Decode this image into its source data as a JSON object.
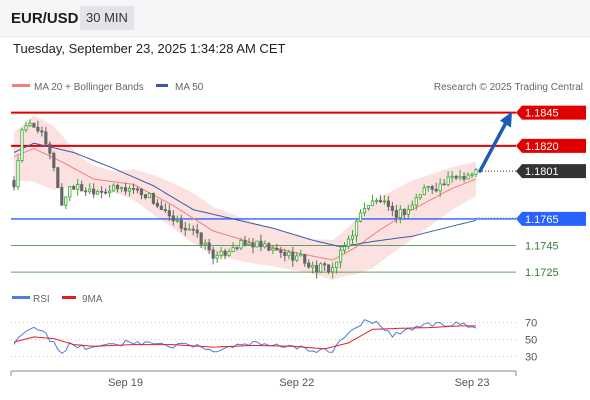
{
  "header": {
    "symbol": "EUR/USD",
    "timeframe": "30 MIN"
  },
  "timestamp": "Tuesday, September 23, 2025 1:34:28 AM CET",
  "legend": {
    "ma20": "MA 20 + Bollinger Bands",
    "ma50": "MA 50",
    "rsi": "RSI",
    "ma9": "9MA"
  },
  "attribution": "Research © 2025 Trading Central",
  "colors": {
    "candle_up": "#33aa33",
    "candle_down": "#666666",
    "ma20": "#f08080",
    "ma50": "#3a5aa8",
    "bollinger_fill": "#fcdcdc",
    "resistance": "#e00000",
    "support": "#2962ff",
    "target": "#60a060",
    "arrow": "#1e5bb8",
    "rsi": "#4a7ee0",
    "rsi_ma": "#e02020"
  },
  "chart_data": [
    {
      "type": "candlestick",
      "title": "EUR/USD 30 MIN",
      "x_ticks": [
        "Sep 19",
        "Sep 22",
        "Sep 23"
      ],
      "ylim": [
        1.1707,
        1.1853
      ],
      "levels": [
        {
          "value": 1.1845,
          "label": "1.1845",
          "kind": "resistance"
        },
        {
          "value": 1.182,
          "label": "1.1820",
          "kind": "resistance"
        },
        {
          "value": 1.1801,
          "label": "1.1801",
          "kind": "current"
        },
        {
          "value": 1.1765,
          "label": "1.1765",
          "kind": "pivot"
        },
        {
          "value": 1.1745,
          "label": "1.1745",
          "kind": "support"
        },
        {
          "value": 1.1725,
          "label": "1.1725",
          "kind": "support"
        }
      ],
      "close_anchors": [
        [
          0,
          1.179
        ],
        [
          2,
          1.183
        ],
        [
          4,
          1.1836
        ],
        [
          6,
          1.1834
        ],
        [
          8,
          1.182
        ],
        [
          10,
          1.1805
        ],
        [
          12,
          1.1775
        ],
        [
          14,
          1.179
        ],
        [
          18,
          1.1787
        ],
        [
          24,
          1.1787
        ],
        [
          30,
          1.1788
        ],
        [
          34,
          1.1782
        ],
        [
          40,
          1.1762
        ],
        [
          44,
          1.1758
        ],
        [
          48,
          1.1745
        ],
        [
          51,
          1.1735
        ],
        [
          55,
          1.1745
        ],
        [
          60,
          1.1746
        ],
        [
          66,
          1.174
        ],
        [
          72,
          1.1736
        ],
        [
          75,
          1.1728
        ],
        [
          80,
          1.1728
        ],
        [
          82,
          1.1738
        ],
        [
          85,
          1.1755
        ],
        [
          88,
          1.1775
        ],
        [
          92,
          1.1779
        ],
        [
          95,
          1.1768
        ],
        [
          99,
          1.1772
        ],
        [
          103,
          1.1788
        ],
        [
          107,
          1.179
        ],
        [
          111,
          1.1797
        ],
        [
          115,
          1.1799
        ],
        [
          116,
          1.1801
        ]
      ],
      "ma20_anchors": [
        [
          0,
          1.1812
        ],
        [
          5,
          1.1818
        ],
        [
          12,
          1.1808
        ],
        [
          20,
          1.1795
        ],
        [
          30,
          1.1791
        ],
        [
          40,
          1.1775
        ],
        [
          50,
          1.1756
        ],
        [
          60,
          1.1747
        ],
        [
          70,
          1.174
        ],
        [
          80,
          1.1734
        ],
        [
          86,
          1.1744
        ],
        [
          92,
          1.1757
        ],
        [
          100,
          1.1772
        ],
        [
          110,
          1.1788
        ],
        [
          116,
          1.1795
        ]
      ],
      "ma50_anchors": [
        [
          0,
          1.1815
        ],
        [
          5,
          1.1822
        ],
        [
          15,
          1.1815
        ],
        [
          25,
          1.1803
        ],
        [
          35,
          1.179
        ],
        [
          45,
          1.1772
        ],
        [
          55,
          1.1765
        ],
        [
          65,
          1.1758
        ],
        [
          75,
          1.1749
        ],
        [
          82,
          1.1744
        ],
        [
          90,
          1.1748
        ],
        [
          100,
          1.1752
        ],
        [
          108,
          1.1758
        ],
        [
          116,
          1.1764
        ]
      ],
      "bollinger_halfwidth_anchors": [
        [
          0,
          0.0018
        ],
        [
          5,
          0.0025
        ],
        [
          10,
          0.0024
        ],
        [
          16,
          0.0012
        ],
        [
          25,
          0.0008
        ],
        [
          35,
          0.0015
        ],
        [
          45,
          0.0019
        ],
        [
          55,
          0.0017
        ],
        [
          65,
          0.0014
        ],
        [
          75,
          0.0013
        ],
        [
          82,
          0.0016
        ],
        [
          90,
          0.0025
        ],
        [
          100,
          0.0022
        ],
        [
          110,
          0.0016
        ],
        [
          116,
          0.0013
        ]
      ],
      "projection": {
        "from_index": 116,
        "from_value": 1.1801,
        "to_value": 1.1845
      }
    },
    {
      "type": "line",
      "title": "RSI",
      "ylim": [
        20,
        80
      ],
      "y_ticks": [
        70,
        50,
        30
      ],
      "series": [
        {
          "name": "RSI",
          "anchors": [
            [
              0,
              43
            ],
            [
              2,
              58
            ],
            [
              4,
              62
            ],
            [
              6,
              61
            ],
            [
              8,
              55
            ],
            [
              10,
              45
            ],
            [
              12,
              35
            ],
            [
              14,
              44
            ],
            [
              18,
              40
            ],
            [
              24,
              44
            ],
            [
              30,
              47
            ],
            [
              34,
              46
            ],
            [
              40,
              42
            ],
            [
              44,
              45
            ],
            [
              48,
              39
            ],
            [
              51,
              37
            ],
            [
              55,
              42
            ],
            [
              60,
              45
            ],
            [
              66,
              42
            ],
            [
              72,
              41
            ],
            [
              75,
              37
            ],
            [
              80,
              37
            ],
            [
              82,
              48
            ],
            [
              85,
              60
            ],
            [
              88,
              73
            ],
            [
              92,
              68
            ],
            [
              95,
              55
            ],
            [
              99,
              62
            ],
            [
              103,
              68
            ],
            [
              107,
              67
            ],
            [
              111,
              68
            ],
            [
              115,
              67
            ],
            [
              116,
              66
            ]
          ]
        },
        {
          "name": "9MA",
          "anchors": [
            [
              0,
              47
            ],
            [
              5,
              53
            ],
            [
              10,
              51
            ],
            [
              15,
              44
            ],
            [
              20,
              42
            ],
            [
              30,
              44
            ],
            [
              40,
              44
            ],
            [
              50,
              41
            ],
            [
              60,
              43
            ],
            [
              70,
              42
            ],
            [
              78,
              39
            ],
            [
              84,
              46
            ],
            [
              90,
              62
            ],
            [
              96,
              63
            ],
            [
              104,
              64
            ],
            [
              112,
              66
            ],
            [
              116,
              66
            ]
          ]
        }
      ]
    }
  ]
}
